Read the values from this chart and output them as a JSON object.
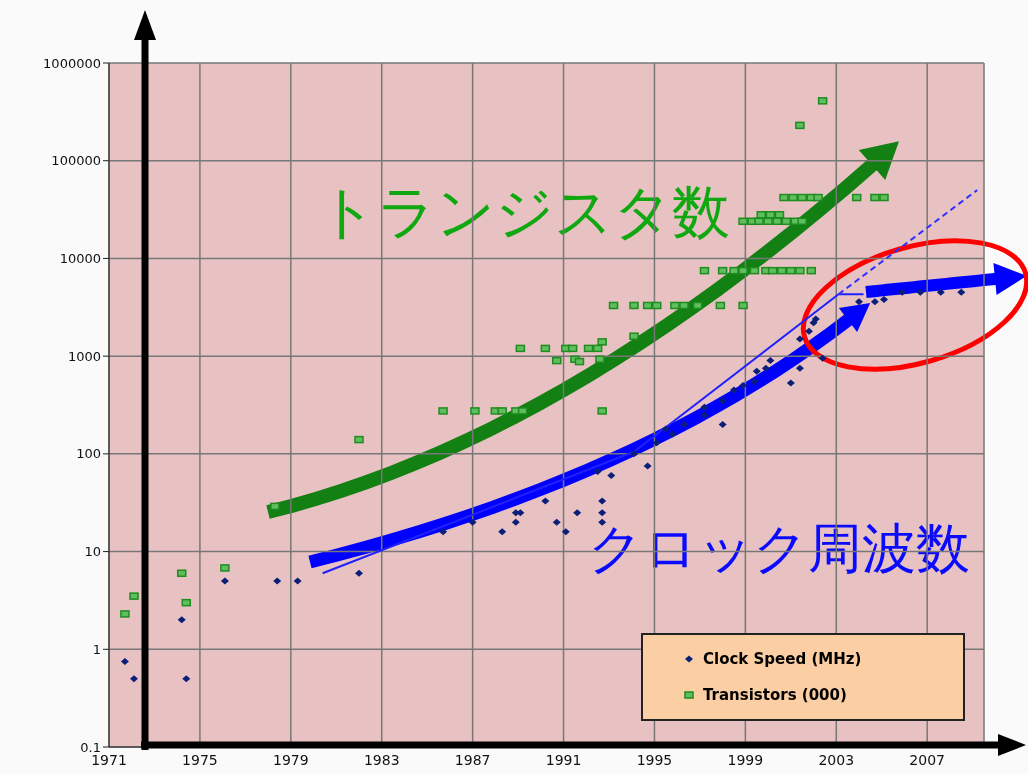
{
  "chart_data": {
    "type": "scatter",
    "xlim": [
      1971,
      2009.5
    ],
    "xticks": [
      1971,
      1975,
      1979,
      1983,
      1987,
      1991,
      1995,
      1999,
      2003,
      2007
    ],
    "ylim": [
      0.1,
      1000000
    ],
    "yticks": [
      {
        "value": 0.1,
        "label": "0.1"
      },
      1,
      10,
      100,
      1000,
      10000,
      100000,
      1000000
    ],
    "log": "y",
    "grid": true,
    "legend": "bottom right",
    "annotations": [
      "トランジスタ数",
      "クロック周波数"
    ],
    "series": [
      {
        "name": "Clock Speed (MHz)",
        "marker": "diamond",
        "color": "#0b1f78",
        "x": [
          1971.7,
          1972.1,
          1974.2,
          1974.4,
          1976.1,
          1978.4,
          1979.3,
          1982.0,
          1985.7,
          1987.0,
          1988.3,
          1988.9,
          1988.9,
          1989.1,
          1990.2,
          1990.7,
          1991.1,
          1991.6,
          1992.5,
          1992.7,
          1992.7,
          1992.7,
          1993.1,
          1994.1,
          1994.7,
          1995.1,
          1995.5,
          1995.8,
          1996.3,
          1997.2,
          1997.2,
          1998.0,
          1998.0,
          1998.5,
          1998.9,
          1999.4,
          1999.5,
          1999.9,
          2000.1,
          2001.0,
          2001.4,
          2001.4,
          2001.8,
          2002.0,
          2002.1,
          2002.4,
          2004.0,
          2004.7,
          2005.1,
          2005.9,
          2006.7,
          2007.6,
          2008.5
        ],
        "values": [
          0.75,
          0.5,
          2,
          0.5,
          5,
          5,
          5,
          6,
          16,
          20,
          16,
          20,
          25,
          25,
          33,
          20,
          16,
          25,
          66,
          33,
          25,
          20,
          60,
          100,
          75,
          130,
          180,
          160,
          200,
          250,
          300,
          200,
          350,
          450,
          500,
          550,
          700,
          750,
          900,
          530,
          750,
          1500,
          1800,
          2200,
          2400,
          950,
          3600,
          3600,
          3800,
          4500,
          4500,
          4500,
          4500
        ]
      },
      {
        "name": "Transistors (000)",
        "marker": "square",
        "color": "#1e8c1e",
        "x": [
          1971.7,
          1972.1,
          1974.2,
          1974.4,
          1976.1,
          1978.3,
          1982.0,
          1985.7,
          1987.1,
          1988.0,
          1988.3,
          1988.9,
          1989.2,
          1989.1,
          1990.2,
          1990.7,
          1991.1,
          1991.4,
          1991.5,
          1991.7,
          1992.1,
          1992.5,
          1992.6,
          1992.7,
          1992.7,
          1993.2,
          1994.1,
          1994.1,
          1994.7,
          1995.1,
          1995.9,
          1996.3,
          1996.9,
          1997.9,
          1998.9,
          1997.2,
          1998.0,
          1998.5,
          1998.9,
          1999.4,
          1999.9,
          2000.2,
          2000.6,
          2001.0,
          2001.4,
          2001.9,
          1998.9,
          1999.3,
          1999.6,
          2000.0,
          2000.4,
          2000.8,
          2001.2,
          2001.5,
          1999.7,
          2000.1,
          2000.5,
          2000.7,
          2001.1,
          2001.5,
          2001.9,
          2002.2,
          2003.9,
          2004.7,
          2005.1,
          2001.4,
          2002.4
        ],
        "values": [
          2.3,
          3.5,
          6,
          3,
          6.8,
          29,
          140,
          275,
          275,
          275,
          275,
          275,
          275,
          1200,
          1200,
          900,
          1200,
          1200,
          930,
          880,
          1200,
          1200,
          930,
          275,
          1400,
          3300,
          1600,
          3300,
          3300,
          3300,
          3300,
          3300,
          3300,
          3300,
          3300,
          7500,
          7500,
          7500,
          7500,
          7500,
          7500,
          7500,
          7500,
          7500,
          7500,
          7500,
          24000,
          24000,
          24000,
          24000,
          24000,
          24000,
          24000,
          24000,
          28000,
          28000,
          28000,
          42000,
          42000,
          42000,
          42000,
          42000,
          42000,
          42000,
          42000,
          230000,
          410000
        ]
      },
      {
        "type": "line",
        "line_style": "solid",
        "color": "#2020ff",
        "x": [
          1980.4,
          1994.1,
          2003.1,
          2004.2
        ],
        "values": [
          6,
          105,
          4300,
          4300
        ]
      },
      {
        "type": "line",
        "line_style": "dashed",
        "color": "#3030ff",
        "x": [
          2003.1,
          2009.2
        ],
        "values": [
          4300,
          50000
        ]
      }
    ]
  }
}
